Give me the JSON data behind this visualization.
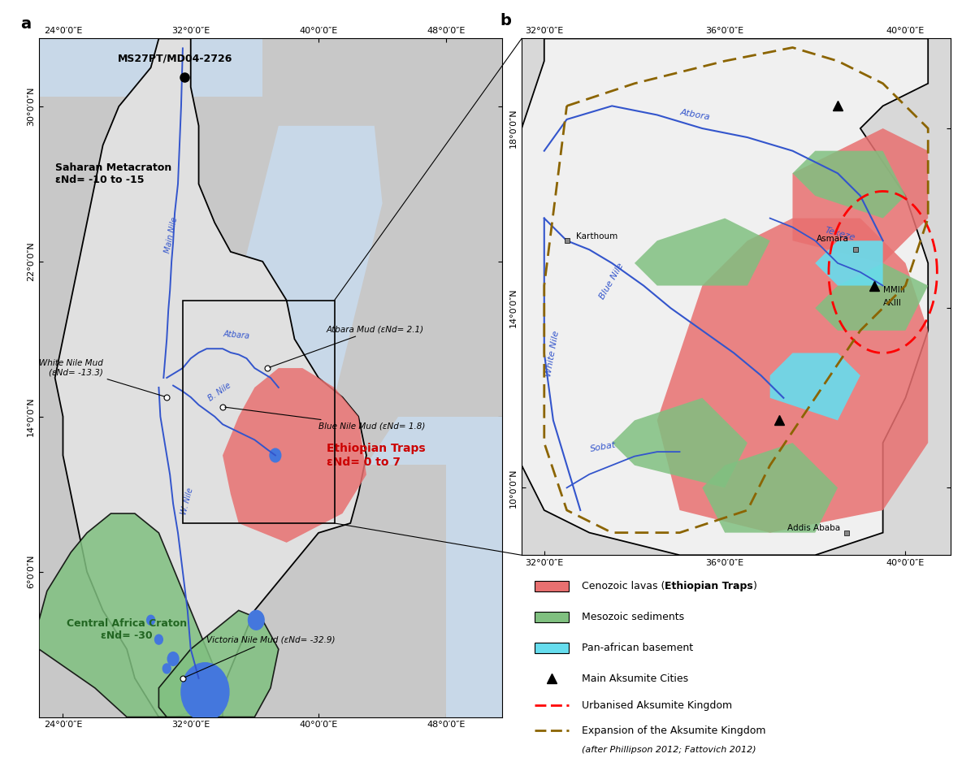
{
  "fig_width": 12.0,
  "fig_height": 9.49,
  "background_color": "#ffffff",
  "ocean_color_a": "#c8d8e8",
  "land_color_a": "#c8c8c8",
  "basin_color_a": "#e0e0e0",
  "ocean_color_b": "#c8d8e8",
  "land_color_b": "#d8d8d8",
  "basin_color_b": "#f0f0f0",
  "ethiopian_traps_color": "#e87070",
  "mesozoic_color": "#80c080",
  "panaf_color": "#66ddee",
  "river_color": "#3355cc",
  "lake_color": "#4477dd",
  "panel_a": {
    "xlim": [
      22.5,
      51.5
    ],
    "ylim": [
      -1.5,
      33.5
    ],
    "xticks": [
      24,
      32,
      40,
      48
    ],
    "yticks": [
      6,
      14,
      22,
      30
    ],
    "xlabel_ticks": [
      "24°0′0″E",
      "32°0′0″E",
      "40°0′0″E",
      "48°0′0″E"
    ],
    "ylabel_ticks": [
      "6°0′0″N",
      "14°0′0″N",
      "22°0′0″N",
      "30°0′0″N"
    ]
  },
  "panel_b": {
    "xlim": [
      31.5,
      41.0
    ],
    "ylim": [
      8.5,
      20.0
    ],
    "xticks": [
      32,
      36,
      40
    ],
    "yticks": [
      10,
      14,
      18
    ],
    "xlabel_ticks": [
      "32°0′0″E",
      "36°0′0″E",
      "40°0′0″E"
    ],
    "ylabel_ticks": [
      "10°0′0″N",
      "14°0′0″N",
      "18°0′0″N"
    ]
  }
}
